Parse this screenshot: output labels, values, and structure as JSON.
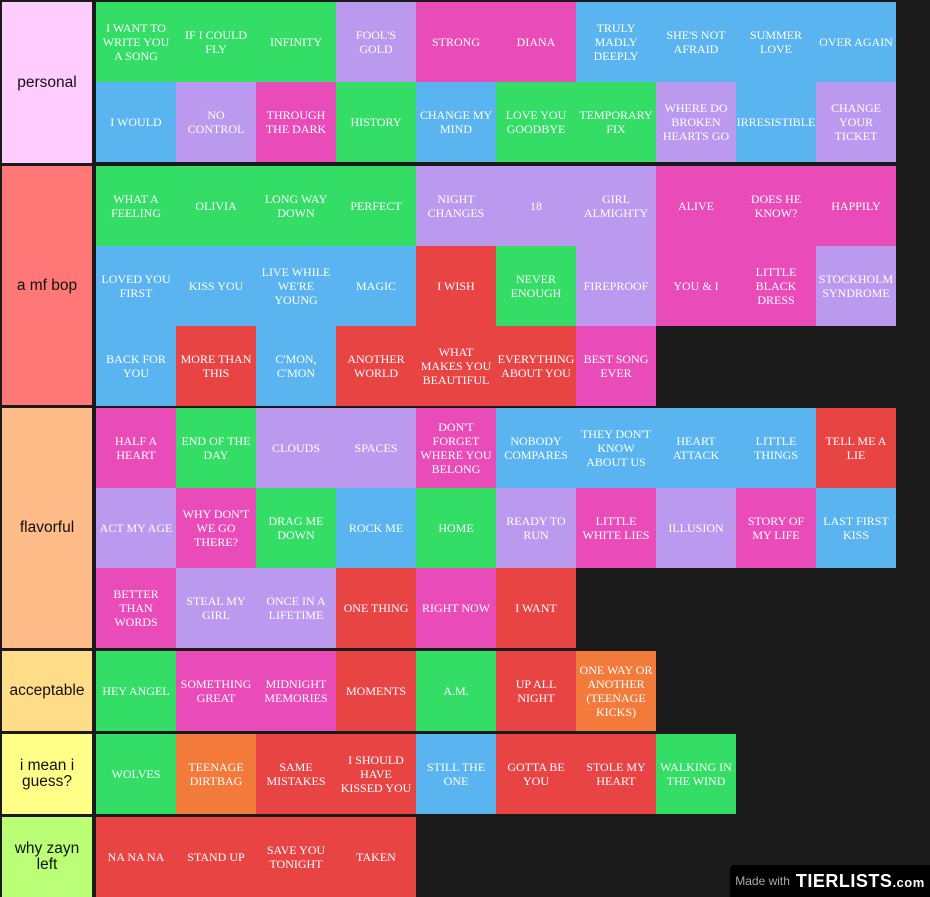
{
  "colors": {
    "green": "#33dd66",
    "lavender": "#bb99ee",
    "pink": "#e94cb8",
    "blue": "#5ab4f0",
    "red": "#e84444",
    "orange": "#f27a3a",
    "background": "#1a1a1a"
  },
  "tiers": [
    {
      "label": "personal",
      "color": "#ffccff",
      "items": [
        {
          "text": "I WANT TO WRITE YOU A SONG",
          "color": "#33dd66"
        },
        {
          "text": "IF I COULD FLY",
          "color": "#33dd66"
        },
        {
          "text": "INFINITY",
          "color": "#33dd66"
        },
        {
          "text": "FOOL'S GOLD",
          "color": "#bb99ee"
        },
        {
          "text": "STRONG",
          "color": "#e94cb8"
        },
        {
          "text": "DIANA",
          "color": "#e94cb8"
        },
        {
          "text": "TRULY MADLY DEEPLY",
          "color": "#5ab4f0"
        },
        {
          "text": "SHE'S NOT AFRAID",
          "color": "#5ab4f0"
        },
        {
          "text": "SUMMER LOVE",
          "color": "#5ab4f0"
        },
        {
          "text": "OVER AGAIN",
          "color": "#5ab4f0"
        },
        {
          "text": "I WOULD",
          "color": "#5ab4f0"
        },
        {
          "text": "NO CONTROL",
          "color": "#bb99ee"
        },
        {
          "text": "THROUGH THE DARK",
          "color": "#e94cb8"
        },
        {
          "text": "HISTORY",
          "color": "#33dd66"
        },
        {
          "text": "CHANGE MY MIND",
          "color": "#5ab4f0"
        },
        {
          "text": "LOVE YOU GOODBYE",
          "color": "#33dd66"
        },
        {
          "text": "TEMPORARY FIX",
          "color": "#33dd66"
        },
        {
          "text": "WHERE DO BROKEN HEARTS GO",
          "color": "#bb99ee"
        },
        {
          "text": "IRRESISTIBLE",
          "color": "#5ab4f0"
        },
        {
          "text": "CHANGE YOUR TICKET",
          "color": "#bb99ee"
        }
      ]
    },
    {
      "label": "a mf bop",
      "color": "#ff7777",
      "items": [
        {
          "text": "WHAT A FEELING",
          "color": "#33dd66"
        },
        {
          "text": "OLIVIA",
          "color": "#33dd66"
        },
        {
          "text": "LONG WAY DOWN",
          "color": "#33dd66"
        },
        {
          "text": "PERFECT",
          "color": "#33dd66"
        },
        {
          "text": "NIGHT CHANGES",
          "color": "#bb99ee"
        },
        {
          "text": "18",
          "color": "#bb99ee"
        },
        {
          "text": "GIRL ALMIGHTY",
          "color": "#bb99ee"
        },
        {
          "text": "ALIVE",
          "color": "#e94cb8"
        },
        {
          "text": "DOES HE KNOW?",
          "color": "#e94cb8"
        },
        {
          "text": "HAPPILY",
          "color": "#e94cb8"
        },
        {
          "text": "LOVED YOU FIRST",
          "color": "#5ab4f0"
        },
        {
          "text": "KISS YOU",
          "color": "#5ab4f0"
        },
        {
          "text": "LIVE WHILE WE'RE YOUNG",
          "color": "#5ab4f0"
        },
        {
          "text": "MAGIC",
          "color": "#5ab4f0"
        },
        {
          "text": "I WISH",
          "color": "#e84444"
        },
        {
          "text": "NEVER ENOUGH",
          "color": "#33dd66"
        },
        {
          "text": "FIREPROOF",
          "color": "#bb99ee"
        },
        {
          "text": "YOU & I",
          "color": "#e94cb8"
        },
        {
          "text": "LITTLE BLACK DRESS",
          "color": "#e94cb8"
        },
        {
          "text": "STOCKHOLM SYNDROME",
          "color": "#bb99ee"
        },
        {
          "text": "BACK FOR YOU",
          "color": "#5ab4f0"
        },
        {
          "text": "MORE THAN THIS",
          "color": "#e84444"
        },
        {
          "text": "C'MON, C'MON",
          "color": "#5ab4f0"
        },
        {
          "text": "ANOTHER WORLD",
          "color": "#e84444"
        },
        {
          "text": "WHAT MAKES YOU BEAUTIFUL",
          "color": "#e84444"
        },
        {
          "text": "EVERYTHING ABOUT YOU",
          "color": "#e84444"
        },
        {
          "text": "BEST SONG EVER",
          "color": "#e94cb8"
        }
      ]
    },
    {
      "label": "flavorful",
      "color": "#ffbb88",
      "items": [
        {
          "text": "HALF A HEART",
          "color": "#e94cb8"
        },
        {
          "text": "END OF THE DAY",
          "color": "#33dd66"
        },
        {
          "text": "CLOUDS",
          "color": "#bb99ee"
        },
        {
          "text": "SPACES",
          "color": "#bb99ee"
        },
        {
          "text": "DON'T FORGET WHERE YOU BELONG",
          "color": "#e94cb8"
        },
        {
          "text": "NOBODY COMPARES",
          "color": "#5ab4f0"
        },
        {
          "text": "THEY DON'T KNOW ABOUT US",
          "color": "#5ab4f0"
        },
        {
          "text": "HEART ATTACK",
          "color": "#5ab4f0"
        },
        {
          "text": "LITTLE THINGS",
          "color": "#5ab4f0"
        },
        {
          "text": "TELL ME A LIE",
          "color": "#e84444"
        },
        {
          "text": "ACT MY AGE",
          "color": "#bb99ee"
        },
        {
          "text": "WHY DON'T WE GO THERE?",
          "color": "#e94cb8"
        },
        {
          "text": "DRAG ME DOWN",
          "color": "#33dd66"
        },
        {
          "text": "ROCK ME",
          "color": "#5ab4f0"
        },
        {
          "text": "HOME",
          "color": "#33dd66"
        },
        {
          "text": "READY TO RUN",
          "color": "#bb99ee"
        },
        {
          "text": "LITTLE WHITE LIES",
          "color": "#e94cb8"
        },
        {
          "text": "ILLUSION",
          "color": "#bb99ee"
        },
        {
          "text": "STORY OF MY LIFE",
          "color": "#e94cb8"
        },
        {
          "text": "LAST FIRST KISS",
          "color": "#5ab4f0"
        },
        {
          "text": "BETTER THAN WORDS",
          "color": "#e94cb8"
        },
        {
          "text": "STEAL MY GIRL",
          "color": "#bb99ee"
        },
        {
          "text": "ONCE IN A LIFETIME",
          "color": "#bb99ee"
        },
        {
          "text": "ONE THING",
          "color": "#e84444"
        },
        {
          "text": "RIGHT NOW",
          "color": "#e94cb8"
        },
        {
          "text": "I WANT",
          "color": "#e84444"
        }
      ]
    },
    {
      "label": "acceptable",
      "color": "#ffdd88",
      "items": [
        {
          "text": "HEY ANGEL",
          "color": "#33dd66"
        },
        {
          "text": "SOMETHING GREAT",
          "color": "#e94cb8"
        },
        {
          "text": "MIDNIGHT MEMORIES",
          "color": "#e94cb8"
        },
        {
          "text": "MOMENTS",
          "color": "#e84444"
        },
        {
          "text": "A.M.",
          "color": "#33dd66"
        },
        {
          "text": "UP ALL NIGHT",
          "color": "#e84444"
        },
        {
          "text": "ONE WAY OR ANOTHER (TEENAGE KICKS)",
          "color": "#f27a3a"
        }
      ]
    },
    {
      "label": "i mean i guess?",
      "color": "#ffff88",
      "items": [
        {
          "text": "WOLVES",
          "color": "#33dd66"
        },
        {
          "text": "TEENAGE DIRTBAG",
          "color": "#f27a3a"
        },
        {
          "text": "SAME MISTAKES",
          "color": "#e84444"
        },
        {
          "text": "I SHOULD HAVE KISSED YOU",
          "color": "#e84444"
        },
        {
          "text": "STILL THE ONE",
          "color": "#5ab4f0"
        },
        {
          "text": "GOTTA BE YOU",
          "color": "#e84444"
        },
        {
          "text": "STOLE MY HEART",
          "color": "#e84444"
        },
        {
          "text": "WALKING IN THE WIND",
          "color": "#33dd66"
        }
      ]
    },
    {
      "label": "why zayn left",
      "color": "#bbff77",
      "items": [
        {
          "text": "NA NA NA",
          "color": "#e84444"
        },
        {
          "text": "STAND UP",
          "color": "#e84444"
        },
        {
          "text": "SAVE YOU TONIGHT",
          "color": "#e84444"
        },
        {
          "text": "TAKEN",
          "color": "#e84444"
        }
      ]
    }
  ],
  "watermark": {
    "made_with": "Made with",
    "logo": "TIERLISTS",
    "logo_suffix": ".com"
  }
}
